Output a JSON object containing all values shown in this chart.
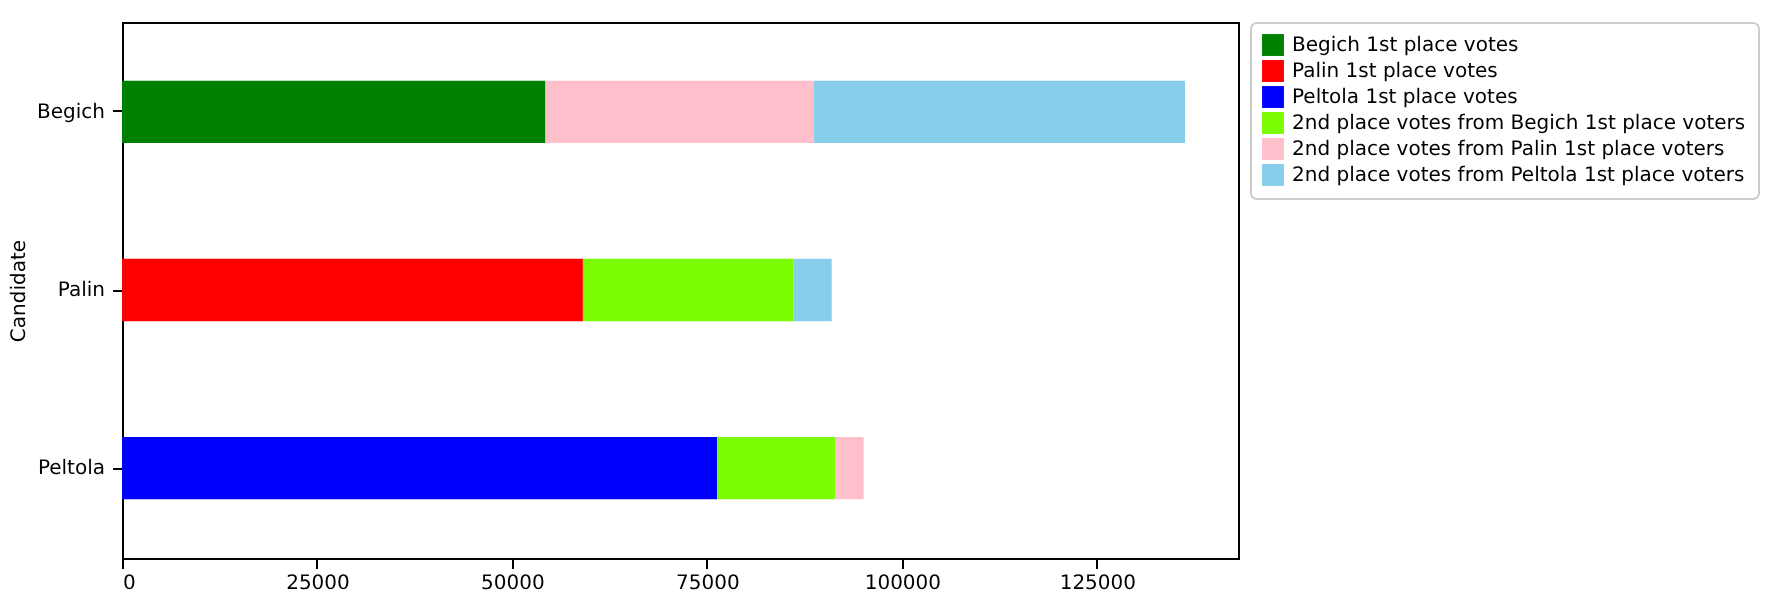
{
  "chart_data": {
    "type": "bar",
    "orientation": "horizontal",
    "stacked": true,
    "ylabel": "Candidate",
    "categories": [
      "Begich",
      "Palin",
      "Peltola"
    ],
    "series": [
      {
        "name": "Begich 1st place votes",
        "color": "#008000",
        "values": [
          54300,
          null,
          null
        ]
      },
      {
        "name": "Palin 1st place votes",
        "color": "#ff0000",
        "values": [
          null,
          59100,
          null
        ]
      },
      {
        "name": "Peltola 1st place votes",
        "color": "#0000ff",
        "values": [
          null,
          null,
          76300
        ]
      },
      {
        "name": "2nd place votes from Begich 1st place voters",
        "color": "#7cfc00",
        "values": [
          null,
          27000,
          15200
        ]
      },
      {
        "name": "2nd place votes from Palin 1st place voters",
        "color": "#ffc0cb",
        "values": [
          34400,
          null,
          3600
        ]
      },
      {
        "name": "2nd place votes from Peltola 1st place voters",
        "color": "#87ceeb",
        "values": [
          47600,
          4900,
          null
        ]
      }
    ],
    "xlim": [
      0,
      143100
    ],
    "xticks": [
      0,
      25000,
      50000,
      75000,
      100000,
      125000
    ],
    "grid": false,
    "legend": "top right"
  }
}
